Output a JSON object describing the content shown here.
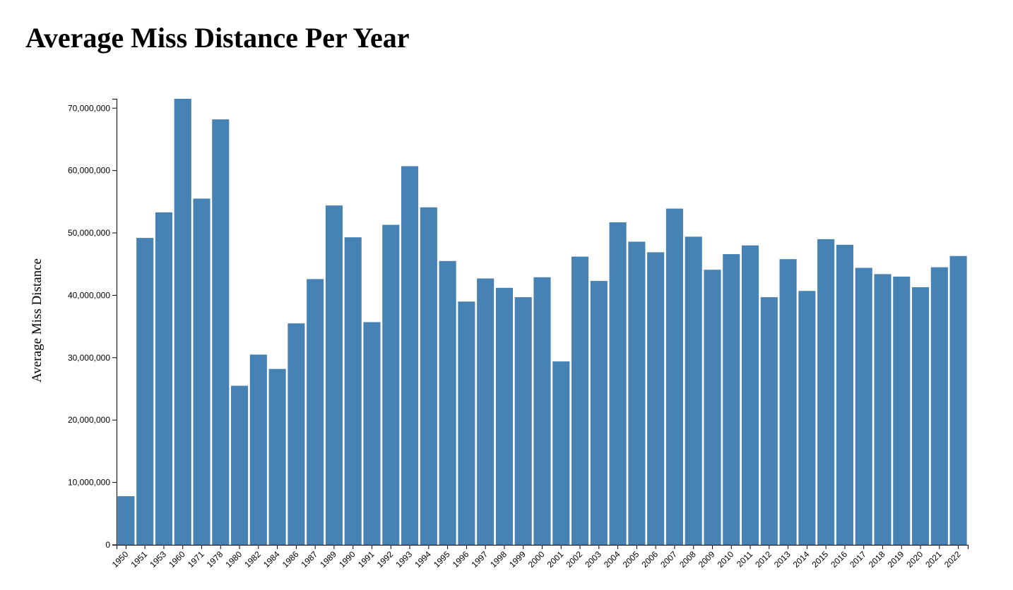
{
  "page": {
    "title": "Average Miss Distance Per Year"
  },
  "colors": {
    "bar": "#4682b4",
    "axis": "#000000"
  },
  "chart_data": {
    "type": "bar",
    "title": "Average Miss Distance Per Year",
    "xlabel": "",
    "ylabel": "Average Miss Distance",
    "ylim": [
      0,
      71500000
    ],
    "yticks": [
      0,
      10000000,
      20000000,
      30000000,
      40000000,
      50000000,
      60000000,
      70000000
    ],
    "ytick_labels": [
      "0",
      "10,000,000",
      "20,000,000",
      "30,000,000",
      "40,000,000",
      "50,000,000",
      "60,000,000",
      "70,000,000"
    ],
    "grid": false,
    "legend": "none",
    "categories": [
      "1950",
      "1951",
      "1953",
      "1960",
      "1971",
      "1978",
      "1980",
      "1982",
      "1984",
      "1986",
      "1987",
      "1989",
      "1990",
      "1991",
      "1992",
      "1993",
      "1994",
      "1995",
      "1996",
      "1997",
      "1998",
      "1999",
      "2000",
      "2001",
      "2002",
      "2003",
      "2004",
      "2005",
      "2006",
      "2007",
      "2008",
      "2009",
      "2010",
      "2011",
      "2012",
      "2013",
      "2014",
      "2015",
      "2016",
      "2017",
      "2018",
      "2019",
      "2020",
      "2021",
      "2022"
    ],
    "values": [
      7800000,
      49200000,
      53300000,
      71500000,
      55500000,
      68200000,
      25500000,
      30500000,
      28200000,
      35500000,
      42600000,
      54400000,
      49300000,
      35700000,
      51300000,
      60700000,
      54100000,
      45500000,
      39000000,
      42700000,
      41200000,
      39700000,
      42900000,
      29400000,
      46200000,
      42300000,
      51700000,
      48600000,
      46900000,
      53900000,
      49400000,
      44100000,
      46600000,
      48000000,
      39700000,
      45800000,
      40700000,
      49000000,
      48100000,
      44400000,
      43400000,
      43000000,
      41300000,
      44500000,
      46300000
    ]
  }
}
